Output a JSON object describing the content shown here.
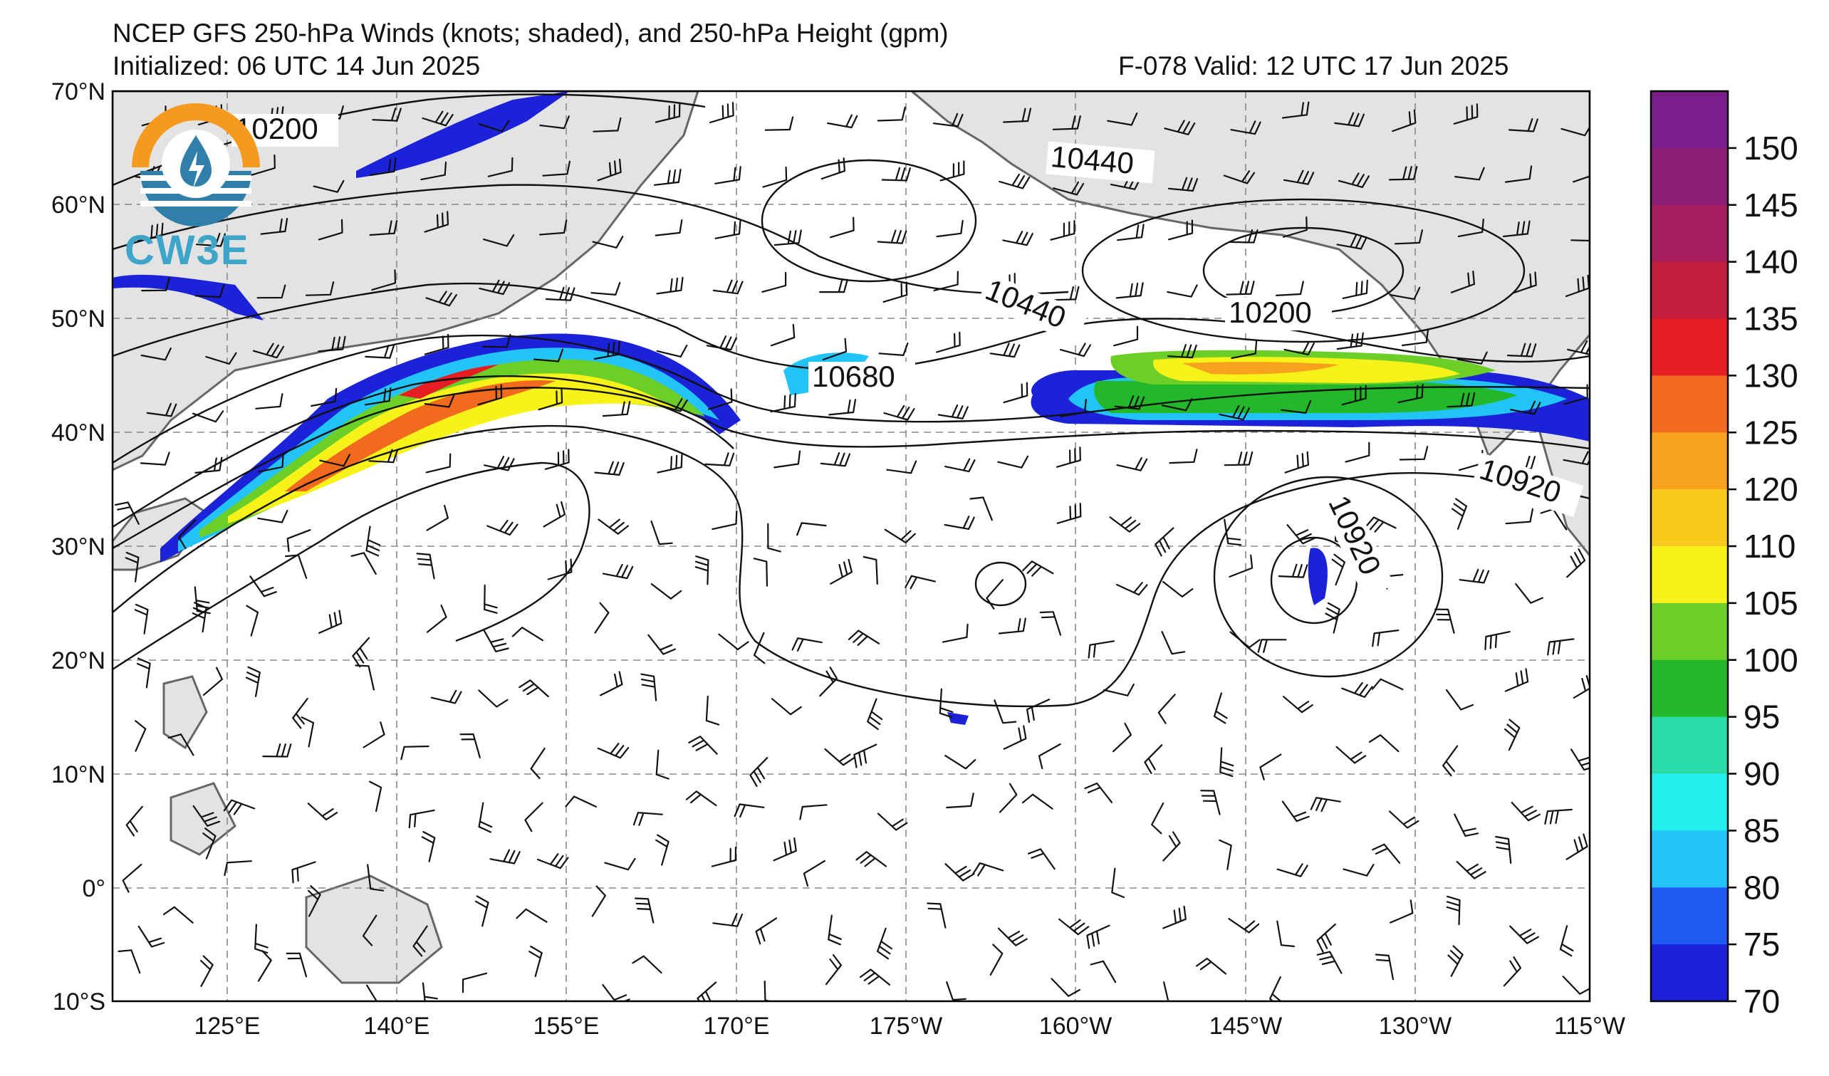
{
  "title": {
    "line1": "NCEP GFS 250-hPa Winds (knots; shaded), and 250-hPa Height (gpm)",
    "line2_left": "Initialized: 06 UTC 14 Jun 2025",
    "line2_right": "F-078  Valid: 12 UTC 17 Jun 2025"
  },
  "logo": {
    "text": "CW3E"
  },
  "axes": {
    "lat_labels": [
      "70°N",
      "60°N",
      "50°N",
      "40°N",
      "30°N",
      "20°N",
      "10°N",
      "0°",
      "10°S"
    ],
    "lon_labels": [
      "125°E",
      "140°E",
      "155°E",
      "170°E",
      "175°W",
      "160°W",
      "145°W",
      "130°W",
      "115°W"
    ]
  },
  "contour_labels": [
    "10200",
    "10440",
    "10440",
    "10200",
    "10680",
    "10920",
    "10920"
  ],
  "colorbar": {
    "ticks": [
      "150",
      "145",
      "140",
      "135",
      "130",
      "125",
      "120",
      "110",
      "105",
      "100",
      "95",
      "90",
      "85",
      "80",
      "75",
      "70"
    ],
    "colors": [
      "#7b1e8c",
      "#8e1f78",
      "#a61e5e",
      "#c41c3c",
      "#e61e24",
      "#f26a1e",
      "#f6a21c",
      "#f8c81c",
      "#f6f21a",
      "#6ccf28",
      "#22b82a",
      "#2adca8",
      "#22f0ec",
      "#22c4f8",
      "#1e5af2",
      "#1c22d8"
    ]
  }
}
